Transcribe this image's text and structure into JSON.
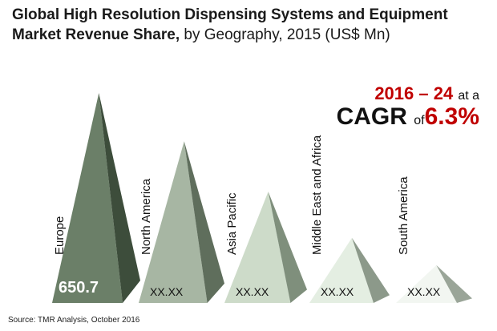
{
  "header": {
    "title_bold": "Global High Resolution Dispensing Systems and Equipment Market Revenue Share,",
    "title_rest": "by Geography, 2015 (US$ Mn)"
  },
  "cagr": {
    "years": "2016 – 24",
    "at": "at a",
    "label": "CAGR",
    "of": "of",
    "value": "6.3%"
  },
  "source": "Source: TMR Analysis, October 2016",
  "chart_data": {
    "type": "bar",
    "title": "Global High Resolution Dispensing Systems and Equipment Market Revenue Share, by Geography, 2015 (US$ Mn)",
    "categories": [
      "Europe",
      "North America",
      "Asia Pacific",
      "Middle East and Africa",
      "South America"
    ],
    "value_labels": [
      "650.7",
      "XX.XX",
      "XX.XX",
      "XX.XX",
      "XX.XX"
    ],
    "values": [
      650.7,
      null,
      null,
      null,
      null
    ],
    "relative_heights": [
      1.0,
      0.77,
      0.53,
      0.31,
      0.18
    ],
    "colors": [
      "#6b7f68",
      "#a7b6a3",
      "#cddbc9",
      "#e4eee2",
      "#f2f6f1"
    ],
    "shade_colors": [
      "#3d4d3b",
      "#5f6e5c",
      "#7f8f7c",
      "#8c998a",
      "#9aa598"
    ]
  }
}
